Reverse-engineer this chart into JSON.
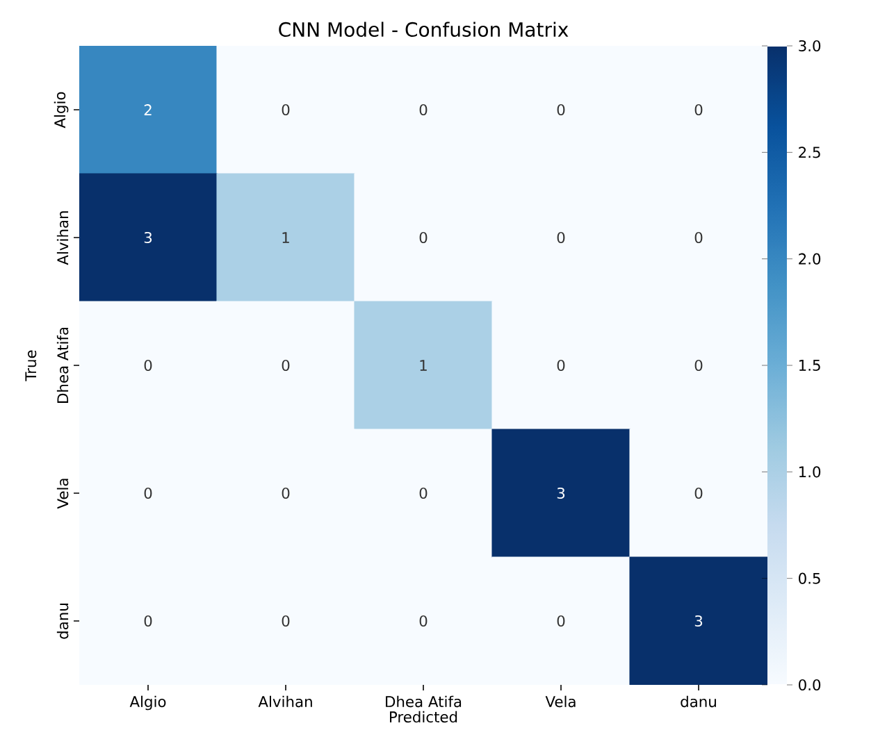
{
  "chart_data": {
    "type": "heatmap",
    "title": "CNN Model - Confusion Matrix",
    "xlabel": "Predicted",
    "ylabel": "True",
    "categories": [
      "Algio",
      "Alvihan",
      "Dhea Atifa",
      "Vela",
      "danu"
    ],
    "y_categories": [
      "Algio",
      "Alvihan",
      "Dhea Atifa",
      "Vela",
      "danu"
    ],
    "cells": [
      [
        2,
        0,
        0,
        0,
        0
      ],
      [
        3,
        1,
        0,
        0,
        0
      ],
      [
        0,
        0,
        1,
        0,
        0
      ],
      [
        0,
        0,
        0,
        3,
        0
      ],
      [
        0,
        0,
        0,
        0,
        3
      ]
    ],
    "clim": [
      0,
      3
    ],
    "cticks": [
      {
        "value": 0,
        "label": "0.0"
      },
      {
        "value": 0.5,
        "label": "0.5"
      },
      {
        "value": 1,
        "label": "1.0"
      },
      {
        "value": 1.5,
        "label": "1.5"
      },
      {
        "value": 2,
        "label": "2.0"
      },
      {
        "value": 2.5,
        "label": "2.5"
      },
      {
        "value": 3,
        "label": "3.0"
      }
    ],
    "data_labels": true
  }
}
